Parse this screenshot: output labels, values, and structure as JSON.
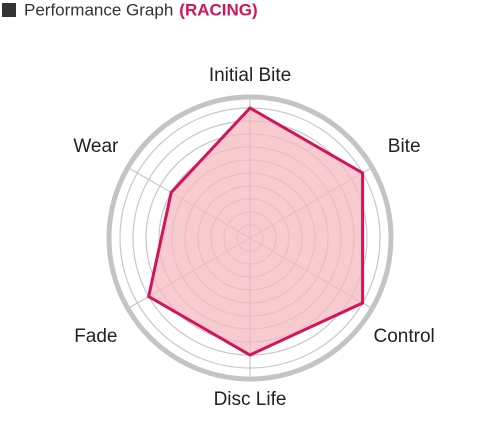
{
  "chart_data": {
    "type": "radar",
    "title": "Performance Graph",
    "title_tag": "(RACING)",
    "categories": [
      "Initial Bite",
      "Bite",
      "Control",
      "Disc Life",
      "Fade",
      "Wear"
    ],
    "values": [
      10,
      10,
      10,
      9,
      9,
      7
    ],
    "color": "#d4145a",
    "fill": "#f4b9c0",
    "ylim": [
      0,
      10
    ],
    "yticks": [
      1,
      2,
      3,
      4,
      5,
      6,
      7,
      8,
      9,
      10
    ],
    "grid": true
  }
}
